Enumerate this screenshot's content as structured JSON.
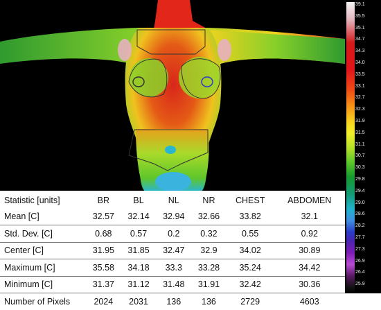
{
  "colorbar": {
    "ticks": [
      "39.1",
      "35.5",
      "35.1",
      "34.7",
      "34.3",
      "34.0",
      "33.5",
      "33.1",
      "32.7",
      "32.3",
      "31.9",
      "31.5",
      "31.1",
      "30.7",
      "30.3",
      "29.8",
      "29.4",
      "29.0",
      "28.6",
      "28.2",
      "27.7",
      "27.3",
      "26.9",
      "26.4",
      "25.9"
    ]
  },
  "table": {
    "headers": [
      "Statistic [units]",
      "BR",
      "BL",
      "NL",
      "NR",
      "CHEST",
      "ABDOMEN"
    ],
    "rows": [
      {
        "label": "Mean [C]",
        "values": [
          "32.57",
          "32.14",
          "32.94",
          "32.66",
          "33.82",
          "32.1"
        ]
      },
      {
        "label": "Std. Dev. [C]",
        "values": [
          "0.68",
          "0.57",
          "0.2",
          "0.32",
          "0.55",
          "0.92"
        ]
      },
      {
        "label": "Center [C]",
        "values": [
          "31.95",
          "31.85",
          "32.47",
          "32.9",
          "34.02",
          "30.89"
        ]
      },
      {
        "label": "Maximum [C]",
        "values": [
          "35.58",
          "34.18",
          "33.3",
          "33.28",
          "35.24",
          "34.42"
        ]
      },
      {
        "label": "Minimum [C]",
        "values": [
          "31.37",
          "31.12",
          "31.48",
          "31.91",
          "32.42",
          "30.36"
        ]
      },
      {
        "label": "Number of Pixels",
        "values": [
          "2024",
          "2031",
          "136",
          "136",
          "2729",
          "4603"
        ]
      }
    ]
  }
}
